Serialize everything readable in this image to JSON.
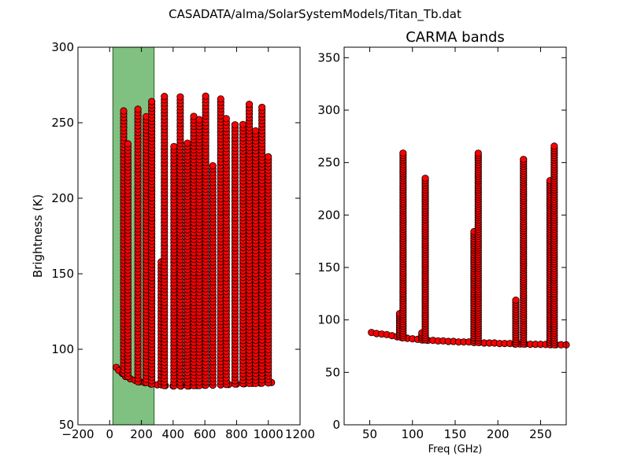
{
  "figure": {
    "suptitle": "CASADATA/alma/SolarSystemModels/Titan_Tb.dat"
  },
  "chart_data": [
    {
      "type": "scatter",
      "title": "",
      "xlabel": "",
      "ylabel": "Brightness (K)",
      "xlim": [
        -200,
        1200
      ],
      "ylim": [
        50,
        300
      ],
      "xticks": [
        "−200",
        "0",
        "200",
        "400",
        "600",
        "800",
        "1000",
        "1200"
      ],
      "yticks": [
        "50",
        "100",
        "150",
        "200",
        "250",
        "300"
      ],
      "shaded_band": {
        "x_range": [
          20,
          280
        ],
        "color": "#80c080"
      },
      "marker": {
        "fill": "#ff0000",
        "edge": "#000000"
      },
      "baseline_points": [
        [
          42,
          88
        ],
        [
          58,
          86
        ],
        [
          80,
          84
        ],
        [
          100,
          82
        ],
        [
          130,
          80.5
        ],
        [
          160,
          79.5
        ],
        [
          190,
          78.5
        ],
        [
          220,
          78
        ],
        [
          260,
          77
        ],
        [
          300,
          76.5
        ],
        [
          350,
          76
        ],
        [
          400,
          75.8
        ],
        [
          450,
          75.7
        ],
        [
          500,
          75.8
        ],
        [
          550,
          76
        ],
        [
          600,
          76.2
        ],
        [
          650,
          76.3
        ],
        [
          700,
          76.5
        ],
        [
          750,
          76.7
        ],
        [
          800,
          77
        ],
        [
          850,
          77.2
        ],
        [
          900,
          77.4
        ],
        [
          950,
          77.6
        ],
        [
          1000,
          77.8
        ],
        [
          1020,
          78
        ]
      ],
      "spikes": [
        {
          "x": 88,
          "peak": 259
        },
        {
          "x": 115,
          "peak": 236
        },
        {
          "x": 178,
          "peak": 261
        },
        {
          "x": 230,
          "peak": 255
        },
        {
          "x": 265,
          "peak": 266
        },
        {
          "x": 325,
          "peak": 160
        },
        {
          "x": 345,
          "peak": 268
        },
        {
          "x": 405,
          "peak": 235
        },
        {
          "x": 445,
          "peak": 268
        },
        {
          "x": 490,
          "peak": 238
        },
        {
          "x": 530,
          "peak": 255
        },
        {
          "x": 565,
          "peak": 252
        },
        {
          "x": 605,
          "peak": 268
        },
        {
          "x": 650,
          "peak": 222
        },
        {
          "x": 700,
          "peak": 267
        },
        {
          "x": 735,
          "peak": 253
        },
        {
          "x": 790,
          "peak": 250
        },
        {
          "x": 840,
          "peak": 250
        },
        {
          "x": 880,
          "peak": 264
        },
        {
          "x": 920,
          "peak": 245
        },
        {
          "x": 960,
          "peak": 262
        },
        {
          "x": 1000,
          "peak": 229
        }
      ]
    },
    {
      "type": "scatter",
      "title": "CARMA bands",
      "xlabel": "Freq (GHz)",
      "ylabel": "",
      "xlim": [
        20,
        280
      ],
      "ylim": [
        0,
        360
      ],
      "xticks": [
        "50",
        "100",
        "150",
        "200",
        "250"
      ],
      "yticks": [
        "0",
        "50",
        "100",
        "150",
        "200",
        "250",
        "300",
        "350"
      ],
      "marker": {
        "fill": "#ff0000",
        "edge": "#000000"
      },
      "baseline_points": [
        [
          52,
          88
        ],
        [
          58,
          87
        ],
        [
          64,
          86.5
        ],
        [
          70,
          86
        ],
        [
          76,
          85
        ],
        [
          82,
          84
        ],
        [
          88,
          83
        ],
        [
          94,
          82.5
        ],
        [
          100,
          82
        ],
        [
          106,
          81.5
        ],
        [
          112,
          81
        ],
        [
          118,
          80.5
        ],
        [
          124,
          80.5
        ],
        [
          130,
          80
        ],
        [
          136,
          80
        ],
        [
          142,
          79.5
        ],
        [
          148,
          79.5
        ],
        [
          154,
          79
        ],
        [
          160,
          79
        ],
        [
          166,
          79
        ],
        [
          172,
          78.5
        ],
        [
          178,
          78.5
        ],
        [
          184,
          78
        ],
        [
          190,
          78
        ],
        [
          196,
          78
        ],
        [
          202,
          77.5
        ],
        [
          208,
          77.5
        ],
        [
          214,
          77.5
        ],
        [
          220,
          77
        ],
        [
          226,
          77
        ],
        [
          232,
          77
        ],
        [
          238,
          76.8
        ],
        [
          244,
          76.8
        ],
        [
          250,
          76.7
        ],
        [
          256,
          76.6
        ],
        [
          262,
          76.5
        ],
        [
          268,
          76.4
        ],
        [
          274,
          76.3
        ],
        [
          280,
          76.2
        ]
      ],
      "spikes": [
        {
          "x": 85,
          "peak": 108
        },
        {
          "x": 89,
          "peak": 259
        },
        {
          "x": 111,
          "peak": 88
        },
        {
          "x": 115,
          "peak": 236
        },
        {
          "x": 172,
          "peak": 186
        },
        {
          "x": 177,
          "peak": 261
        },
        {
          "x": 221,
          "peak": 119
        },
        {
          "x": 230,
          "peak": 254
        },
        {
          "x": 261,
          "peak": 233
        },
        {
          "x": 266,
          "peak": 266
        }
      ]
    }
  ]
}
